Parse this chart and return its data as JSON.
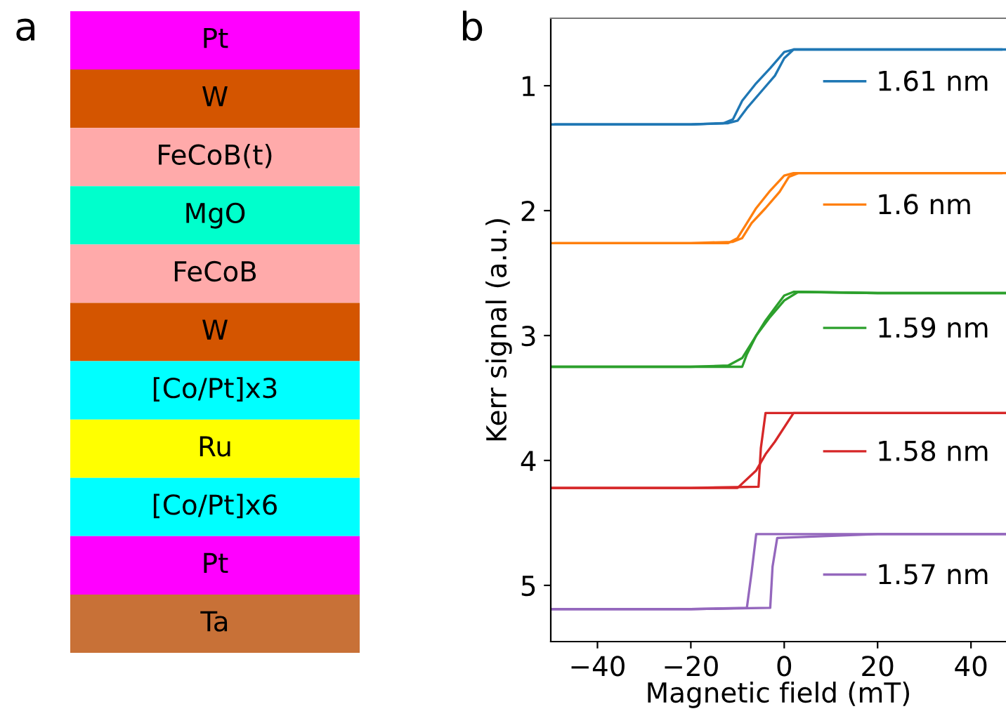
{
  "chart_data": [
    {
      "type": "other",
      "title": "a",
      "categories": [
        "Pt",
        "W",
        "FeCoB(t)",
        "MgO",
        "FeCoB",
        "W",
        "[Co/Pt]x3",
        "Ru",
        "[Co/Pt]x6",
        "Pt",
        "Ta"
      ],
      "colors": [
        "#ff00ff",
        "#d45500",
        "#ffaaaa",
        "#00ffcc",
        "#ffaaaa",
        "#d45500",
        "#00ffff",
        "#ffff00",
        "#00ffff",
        "#ff00ff",
        "#c87137"
      ]
    },
    {
      "type": "line",
      "title": "b",
      "xlabel": "Magnetic field (mT)",
      "ylabel": "Kerr signal (a.u.)",
      "xlim": [
        -50,
        47.5
      ],
      "xticks": [
        {
          "value": -40,
          "label": "−40"
        },
        {
          "value": -20,
          "label": "−20"
        },
        0,
        20,
        40
      ],
      "ylim": [
        5.45,
        0.46
      ],
      "yticks": [
        1,
        2,
        3,
        4,
        5
      ],
      "grid": false,
      "legend": "right",
      "marker": "none",
      "line_style": "solid",
      "series": [
        {
          "name": "1.61 nm",
          "color": "#1f77b4",
          "x": [
            -50,
            -20,
            -12,
            -10,
            -8,
            -5,
            -2,
            0,
            2,
            20,
            47.5
          ],
          "values": [
            1.31,
            1.31,
            1.3,
            1.28,
            1.18,
            1.05,
            0.92,
            0.78,
            0.71,
            0.71,
            0.71
          ]
        },
        {
          "color": "#1f77b4",
          "x": [
            -49,
            -20,
            -13,
            -11,
            -9,
            -6,
            -3,
            0,
            2,
            20,
            46.5
          ],
          "values": [
            1.31,
            1.31,
            1.3,
            1.27,
            1.12,
            0.98,
            0.86,
            0.73,
            0.71,
            0.71,
            0.71
          ]
        },
        {
          "name": "1.6 nm",
          "color": "#ff7f0e",
          "x": [
            -50,
            -20,
            -11,
            -9,
            -7,
            -4,
            -1,
            1,
            3,
            20,
            47.5
          ],
          "values": [
            2.26,
            2.26,
            2.25,
            2.22,
            2.1,
            1.98,
            1.85,
            1.73,
            1.7,
            1.7,
            1.7
          ]
        },
        {
          "color": "#ff7f0e",
          "x": [
            -49,
            -20,
            -12,
            -10,
            -8,
            -6,
            -3,
            0,
            2,
            20,
            46.5
          ],
          "values": [
            2.26,
            2.26,
            2.26,
            2.22,
            2.1,
            1.98,
            1.84,
            1.72,
            1.7,
            1.7,
            1.7
          ]
        },
        {
          "name": "1.59 nm",
          "color": "#2ca02c",
          "x": [
            -50,
            -20,
            -9,
            -8,
            -6,
            -4,
            -2,
            0,
            2,
            20,
            47.5
          ],
          "values": [
            3.25,
            3.25,
            3.25,
            3.15,
            3.0,
            2.88,
            2.78,
            2.68,
            2.65,
            2.66,
            2.66
          ]
        },
        {
          "color": "#2ca02c",
          "x": [
            -50,
            -20,
            -12,
            -9,
            -6,
            -3,
            0,
            3,
            20,
            47.5
          ],
          "values": [
            3.25,
            3.25,
            3.24,
            3.18,
            3.0,
            2.85,
            2.72,
            2.65,
            2.66,
            2.66
          ]
        },
        {
          "name": "1.58 nm",
          "color": "#d62728",
          "x": [
            -50,
            -20,
            -5.5,
            -5,
            -4,
            20,
            47.5
          ],
          "values": [
            4.22,
            4.22,
            4.21,
            3.9,
            3.62,
            3.62,
            3.62
          ]
        },
        {
          "color": "#d62728",
          "x": [
            -50,
            -20,
            -10,
            -6,
            -4,
            -2,
            2,
            20,
            47.5
          ],
          "values": [
            4.22,
            4.22,
            4.22,
            4.08,
            3.95,
            3.85,
            3.62,
            3.62,
            3.62
          ]
        },
        {
          "name": "1.57 nm",
          "color": "#9467bd",
          "x": [
            -50,
            -20,
            -3,
            -2.5,
            -1.5,
            20,
            47.5
          ],
          "values": [
            5.19,
            5.19,
            5.18,
            4.85,
            4.62,
            4.59,
            4.59
          ]
        },
        {
          "color": "#9467bd",
          "x": [
            -50,
            -20,
            -8,
            -7,
            -6,
            20,
            47.5
          ],
          "values": [
            5.19,
            5.19,
            5.18,
            4.9,
            4.59,
            4.59,
            4.59
          ]
        }
      ]
    }
  ]
}
